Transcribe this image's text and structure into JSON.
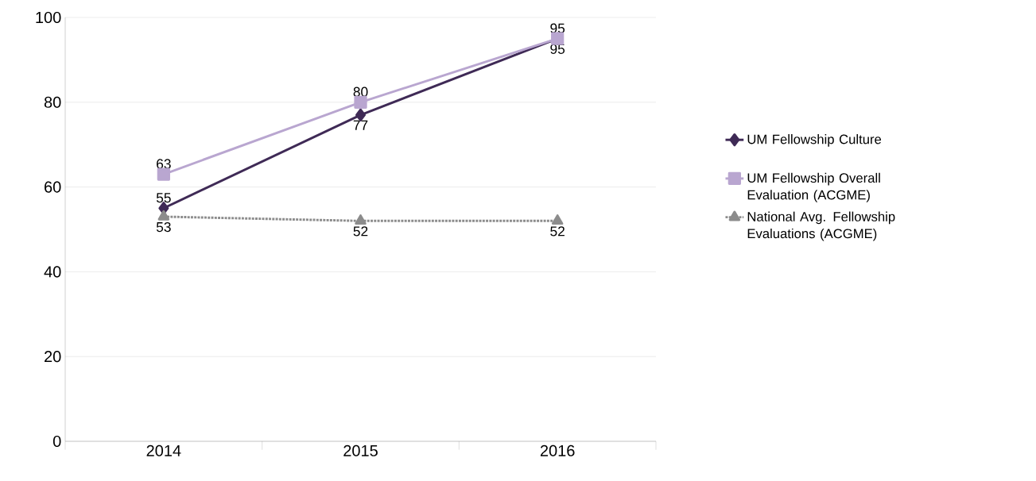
{
  "chart_data": {
    "type": "line",
    "categories": [
      "2014",
      "2015",
      "2016"
    ],
    "series": [
      {
        "name": "UM Fellowship Culture",
        "color": "#3f2a56",
        "values": [
          55,
          77,
          95
        ],
        "marker": "diamond",
        "line_style": "solid"
      },
      {
        "name": "UM Fellowship Overall Evaluation (ACGME)",
        "color": "#b9a6d0",
        "values": [
          63,
          80,
          95
        ],
        "marker": "square",
        "line_style": "solid"
      },
      {
        "name": "National Avg. Fellowship Evaluations (ACGME)",
        "color": "#8c8c8c",
        "values": [
          53,
          52,
          52
        ],
        "marker": "triangle",
        "line_style": "dotted"
      }
    ],
    "ylim": [
      0,
      100
    ],
    "yticks": [
      0,
      20,
      40,
      60,
      80,
      100
    ],
    "grid": "y",
    "legend": "right",
    "data_labels": true
  }
}
